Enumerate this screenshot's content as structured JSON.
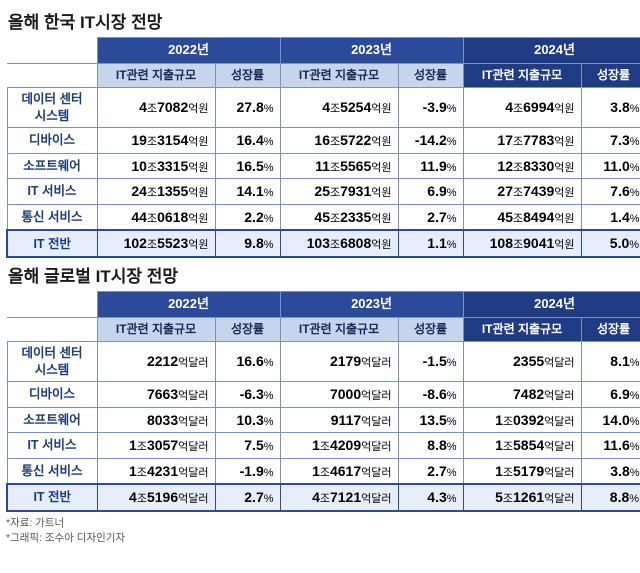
{
  "korea": {
    "title": "올해 한국 IT시장 전망",
    "years": [
      "2022년",
      "2023년",
      "2024년"
    ],
    "subheaders": {
      "spend": "IT관련 지출규모",
      "growth": "성장률"
    },
    "unit": "억원",
    "rows": [
      {
        "label": "데이터 센터\n시스템",
        "cells": [
          {
            "big": "4",
            "mid": "조",
            "num": "7082",
            "g": "27.8"
          },
          {
            "big": "4",
            "mid": "조",
            "num": "5254",
            "g": "-3.9"
          },
          {
            "big": "4",
            "mid": "조",
            "num": "6994",
            "g": "3.8"
          }
        ]
      },
      {
        "label": "디바이스",
        "cells": [
          {
            "big": "19",
            "mid": "조",
            "num": "3154",
            "g": "16.4"
          },
          {
            "big": "16",
            "mid": "조",
            "num": "5722",
            "g": "-14.2"
          },
          {
            "big": "17",
            "mid": "조",
            "num": "7783",
            "g": "7.3"
          }
        ]
      },
      {
        "label": "소프트웨어",
        "cells": [
          {
            "big": "10",
            "mid": "조",
            "num": "3315",
            "g": "16.5"
          },
          {
            "big": "11",
            "mid": "조",
            "num": "5565",
            "g": "11.9"
          },
          {
            "big": "12",
            "mid": "조",
            "num": "8330",
            "g": "11.0"
          }
        ]
      },
      {
        "label": "IT 서비스",
        "cells": [
          {
            "big": "24",
            "mid": "조",
            "num": "1355",
            "g": "14.1"
          },
          {
            "big": "25",
            "mid": "조",
            "num": "7931",
            "g": "6.9"
          },
          {
            "big": "27",
            "mid": "조",
            "num": "7439",
            "g": "7.6"
          }
        ]
      },
      {
        "label": "통신 서비스",
        "cells": [
          {
            "big": "44",
            "mid": "조",
            "num": "0618",
            "g": "2.2"
          },
          {
            "big": "45",
            "mid": "조",
            "num": "2335",
            "g": "2.7"
          },
          {
            "big": "45",
            "mid": "조",
            "num": "8494",
            "g": "1.4"
          }
        ]
      },
      {
        "label": "IT 전반",
        "total": true,
        "cells": [
          {
            "big": "102",
            "mid": "조",
            "num": "5523",
            "g": "9.8"
          },
          {
            "big": "103",
            "mid": "조",
            "num": "6808",
            "g": "1.1"
          },
          {
            "big": "108",
            "mid": "조",
            "num": "9041",
            "g": "5.0"
          }
        ]
      }
    ]
  },
  "global": {
    "title": "올해 글로벌 IT시장 전망",
    "years": [
      "2022년",
      "2023년",
      "2024년"
    ],
    "subheaders": {
      "spend": "IT관련 지출규모",
      "growth": "성장률"
    },
    "unit": "억달러",
    "rows": [
      {
        "label": "데이터 센터\n시스템",
        "cells": [
          {
            "big": "",
            "mid": "",
            "num": "2212",
            "g": "16.6"
          },
          {
            "big": "",
            "mid": "",
            "num": "2179",
            "g": "-1.5"
          },
          {
            "big": "",
            "mid": "",
            "num": "2355",
            "g": "8.1"
          }
        ]
      },
      {
        "label": "디바이스",
        "cells": [
          {
            "big": "",
            "mid": "",
            "num": "7663",
            "g": "-6.3"
          },
          {
            "big": "",
            "mid": "",
            "num": "7000",
            "g": "-8.6"
          },
          {
            "big": "",
            "mid": "",
            "num": "7482",
            "g": "6.9"
          }
        ]
      },
      {
        "label": "소프트웨어",
        "cells": [
          {
            "big": "",
            "mid": "",
            "num": "8033",
            "g": "10.3"
          },
          {
            "big": "",
            "mid": "",
            "num": "9117",
            "g": "13.5"
          },
          {
            "big": "1",
            "mid": "조",
            "num": "0392",
            "g": "14.0"
          }
        ]
      },
      {
        "label": "IT 서비스",
        "cells": [
          {
            "big": "1",
            "mid": "조",
            "num": "3057",
            "g": "7.5"
          },
          {
            "big": "1",
            "mid": "조",
            "num": "4209",
            "g": "8.8"
          },
          {
            "big": "1",
            "mid": "조",
            "num": "5854",
            "g": "11.6"
          }
        ]
      },
      {
        "label": "통신 서비스",
        "cells": [
          {
            "big": "1",
            "mid": "조",
            "num": "4231",
            "g": "-1.9"
          },
          {
            "big": "1",
            "mid": "조",
            "num": "4617",
            "g": "2.7"
          },
          {
            "big": "1",
            "mid": "조",
            "num": "5179",
            "g": "3.8"
          }
        ]
      },
      {
        "label": "IT 전반",
        "total": true,
        "cells": [
          {
            "big": "4",
            "mid": "조",
            "num": "5196",
            "g": "2.7"
          },
          {
            "big": "4",
            "mid": "조",
            "num": "7121",
            "g": "4.3"
          },
          {
            "big": "5",
            "mid": "조",
            "num": "1261",
            "g": "8.8"
          }
        ]
      }
    ]
  },
  "footnotes": {
    "source": "*자료: 가트너",
    "credit": "*그래픽: 조수아 디자인기자"
  }
}
